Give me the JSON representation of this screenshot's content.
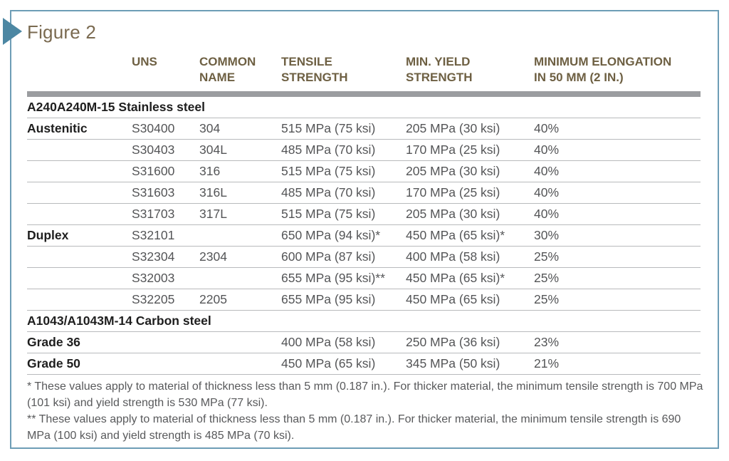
{
  "figure": {
    "title": "Figure 2"
  },
  "colors": {
    "panel_border": "#6d9db6",
    "marker_arrow": "#4c87a3",
    "column_header_text": "#6e6043",
    "title_text": "#7a6a50",
    "header_divider_bar": "#9b9da0",
    "row_divider_line": "#b8babc",
    "section_header_text": "#1e1e1e",
    "body_text": "#545557",
    "footnote_text": "#58595b"
  },
  "table": {
    "columns": [
      "",
      "UNS",
      "COMMON\nNAME",
      "TENSILE\nSTRENGTH",
      "MIN. YIELD\nSTRENGTH",
      "MINIMUM ELONGATION\nIN 50 MM (2 IN.)"
    ],
    "sections": [
      {
        "header": "A240A240M-15 Stainless steel",
        "rows": [
          {
            "category": "Austenitic",
            "uns": "S30400",
            "common": "304",
            "tensile": "515 MPa (75 ksi)",
            "yield": "205 MPa (30 ksi)",
            "elongation": "40%"
          },
          {
            "category": "",
            "uns": "S30403",
            "common": "304L",
            "tensile": "485 MPa (70 ksi)",
            "yield": "170 MPa (25 ksi)",
            "elongation": "40%"
          },
          {
            "category": "",
            "uns": "S31600",
            "common": "316",
            "tensile": "515 MPa (75 ksi)",
            "yield": "205 MPa (30 ksi)",
            "elongation": "40%"
          },
          {
            "category": "",
            "uns": "S31603",
            "common": "316L",
            "tensile": "485 MPa (70 ksi)",
            "yield": "170 MPa (25 ksi)",
            "elongation": "40%"
          },
          {
            "category": "",
            "uns": "S31703",
            "common": "317L",
            "tensile": "515 MPa (75 ksi)",
            "yield": "205 MPa (30 ksi)",
            "elongation": "40%"
          },
          {
            "category": "Duplex",
            "uns": "S32101",
            "common": "",
            "tensile": "650 MPa (94 ksi)*",
            "yield": "450 MPa (65 ksi)*",
            "elongation": "30%"
          },
          {
            "category": "",
            "uns": "S32304",
            "common": "2304",
            "tensile": "600 MPa (87 ksi)",
            "yield": "400 MPa (58 ksi)",
            "elongation": "25%"
          },
          {
            "category": "",
            "uns": "S32003",
            "common": "",
            "tensile": "655 MPa (95 ksi)**",
            "yield": "450 MPa (65 ksi)*",
            "elongation": "25%"
          },
          {
            "category": "",
            "uns": "S32205",
            "common": "2205",
            "tensile": "655 MPa (95 ksi)",
            "yield": "450 MPa (65 ksi)",
            "elongation": "25%"
          }
        ]
      },
      {
        "header": "A1043/A1043M-14 Carbon steel",
        "rows": [
          {
            "category": "Grade 36",
            "uns": "",
            "common": "",
            "tensile": "400 MPa (58 ksi)",
            "yield": "250 MPa (36 ksi)",
            "elongation": "23%"
          },
          {
            "category": "Grade 50",
            "uns": "",
            "common": "",
            "tensile": "450 MPa (65 ksi)",
            "yield": "345 MPa (50 ksi)",
            "elongation": "21%"
          }
        ]
      }
    ]
  },
  "footnotes": [
    "* These values apply to material of thickness less than 5 mm (0.187 in.). For thicker material, the minimum tensile strength is 700 MPa (101 ksi) and yield strength is 530 MPa (77 ksi).",
    "** These values apply to material of thickness less than 5 mm (0.187 in.). For thicker material, the minimum tensile strength is 690 MPa (100 ksi) and yield strength is 485 MPa (70 ksi)."
  ]
}
